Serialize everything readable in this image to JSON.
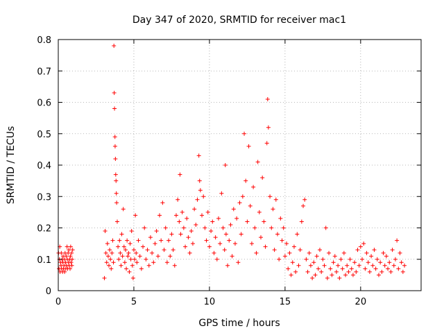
{
  "chart_data": {
    "type": "scatter",
    "title": "Day 347 of 2020, SRMTID for receiver mac1",
    "xlabel": "GPS time / hours",
    "ylabel": "SRMTID / TECUs",
    "xlim": [
      0,
      24
    ],
    "ylim": [
      0,
      0.8
    ],
    "x_ticks": [
      {
        "value": 0,
        "label": "0"
      },
      {
        "value": 5,
        "label": "5"
      },
      {
        "value": 10,
        "label": "10"
      },
      {
        "value": 15,
        "label": "15"
      },
      {
        "value": 20,
        "label": "20"
      }
    ],
    "y_ticks": [
      {
        "value": 0,
        "label": "0"
      },
      {
        "value": 0.1,
        "label": "0.1"
      },
      {
        "value": 0.2,
        "label": "0.2"
      },
      {
        "value": 0.3,
        "label": "0.3"
      },
      {
        "value": 0.4,
        "label": "0.4"
      },
      {
        "value": 0.5,
        "label": "0.5"
      },
      {
        "value": 0.6,
        "label": "0.6"
      },
      {
        "value": 0.7,
        "label": "0.7"
      },
      {
        "value": 0.8,
        "label": "0.8"
      }
    ],
    "grid": true,
    "marker": "+",
    "color": "#ff0000",
    "series": [
      {
        "name": "SRMTID",
        "points": [
          [
            0.02,
            0.12
          ],
          [
            0.05,
            0.07
          ],
          [
            0.08,
            0.1
          ],
          [
            0.1,
            0.14
          ],
          [
            0.12,
            0.06
          ],
          [
            0.15,
            0.09
          ],
          [
            0.18,
            0.08
          ],
          [
            0.2,
            0.12
          ],
          [
            0.22,
            0.07
          ],
          [
            0.25,
            0.1
          ],
          [
            0.28,
            0.06
          ],
          [
            0.3,
            0.09
          ],
          [
            0.32,
            0.11
          ],
          [
            0.35,
            0.07
          ],
          [
            0.38,
            0.08
          ],
          [
            0.4,
            0.1
          ],
          [
            0.42,
            0.06
          ],
          [
            0.45,
            0.12
          ],
          [
            0.48,
            0.09
          ],
          [
            0.5,
            0.07
          ],
          [
            0.52,
            0.11
          ],
          [
            0.55,
            0.08
          ],
          [
            0.58,
            0.14
          ],
          [
            0.6,
            0.1
          ],
          [
            0.62,
            0.07
          ],
          [
            0.65,
            0.12
          ],
          [
            0.68,
            0.09
          ],
          [
            0.7,
            0.13
          ],
          [
            0.72,
            0.08
          ],
          [
            0.75,
            0.1
          ],
          [
            0.78,
            0.07
          ],
          [
            0.8,
            0.11
          ],
          [
            0.82,
            0.14
          ],
          [
            0.85,
            0.09
          ],
          [
            0.88,
            0.12
          ],
          [
            0.9,
            0.08
          ],
          [
            0.92,
            0.1
          ],
          [
            0.95,
            0.13
          ],
          [
            3.05,
            0.04
          ],
          [
            3.1,
            0.19
          ],
          [
            3.15,
            0.12
          ],
          [
            3.2,
            0.09
          ],
          [
            3.25,
            0.15
          ],
          [
            3.3,
            0.11
          ],
          [
            3.35,
            0.08
          ],
          [
            3.4,
            0.13
          ],
          [
            3.45,
            0.1
          ],
          [
            3.5,
            0.07
          ],
          [
            3.55,
            0.12
          ],
          [
            3.6,
            0.16
          ],
          [
            3.65,
            0.09
          ],
          [
            3.68,
            0.78
          ],
          [
            3.7,
            0.63
          ],
          [
            3.72,
            0.58
          ],
          [
            3.75,
            0.49
          ],
          [
            3.76,
            0.46
          ],
          [
            3.78,
            0.42
          ],
          [
            3.8,
            0.37
          ],
          [
            3.82,
            0.35
          ],
          [
            3.84,
            0.31
          ],
          [
            3.86,
            0.28
          ],
          [
            3.9,
            0.22
          ],
          [
            3.95,
            0.14
          ],
          [
            4.0,
            0.1
          ],
          [
            4.05,
            0.16
          ],
          [
            4.1,
            0.12
          ],
          [
            4.15,
            0.08
          ],
          [
            4.2,
            0.18
          ],
          [
            4.25,
            0.11
          ],
          [
            4.3,
            0.26
          ],
          [
            4.35,
            0.14
          ],
          [
            4.4,
            0.09
          ],
          [
            4.45,
            0.13
          ],
          [
            4.5,
            0.07
          ],
          [
            4.55,
            0.16
          ],
          [
            4.6,
            0.11
          ],
          [
            4.65,
            0.12
          ],
          [
            4.7,
            0.06
          ],
          [
            4.75,
            0.15
          ],
          [
            4.8,
            0.1
          ],
          [
            4.85,
            0.19
          ],
          [
            4.9,
            0.08
          ],
          [
            4.95,
            0.04
          ],
          [
            5.0,
            0.13
          ],
          [
            5.05,
            0.1
          ],
          [
            5.1,
            0.24
          ],
          [
            5.15,
            0.12
          ],
          [
            5.2,
            0.09
          ],
          [
            5.3,
            0.16
          ],
          [
            5.4,
            0.11
          ],
          [
            5.5,
            0.07
          ],
          [
            5.6,
            0.14
          ],
          [
            5.7,
            0.2
          ],
          [
            5.8,
            0.1
          ],
          [
            5.9,
            0.13
          ],
          [
            6.0,
            0.08
          ],
          [
            6.1,
            0.17
          ],
          [
            6.2,
            0.12
          ],
          [
            6.3,
            0.09
          ],
          [
            6.4,
            0.15
          ],
          [
            6.5,
            0.19
          ],
          [
            6.6,
            0.11
          ],
          [
            6.7,
            0.24
          ],
          [
            6.8,
            0.16
          ],
          [
            6.9,
            0.28
          ],
          [
            7.0,
            0.13
          ],
          [
            7.1,
            0.2
          ],
          [
            7.2,
            0.09
          ],
          [
            7.3,
            0.16
          ],
          [
            7.4,
            0.11
          ],
          [
            7.5,
            0.18
          ],
          [
            7.6,
            0.13
          ],
          [
            7.7,
            0.08
          ],
          [
            7.8,
            0.24
          ],
          [
            7.9,
            0.29
          ],
          [
            8.0,
            0.22
          ],
          [
            8.05,
            0.37
          ],
          [
            8.1,
            0.18
          ],
          [
            8.2,
            0.25
          ],
          [
            8.3,
            0.2
          ],
          [
            8.4,
            0.14
          ],
          [
            8.5,
            0.23
          ],
          [
            8.6,
            0.17
          ],
          [
            8.7,
            0.12
          ],
          [
            8.8,
            0.19
          ],
          [
            8.9,
            0.15
          ],
          [
            9.0,
            0.26
          ],
          [
            9.1,
            0.21
          ],
          [
            9.2,
            0.29
          ],
          [
            9.3,
            0.43
          ],
          [
            9.35,
            0.35
          ],
          [
            9.4,
            0.32
          ],
          [
            9.5,
            0.24
          ],
          [
            9.6,
            0.3
          ],
          [
            9.7,
            0.2
          ],
          [
            9.8,
            0.16
          ],
          [
            9.9,
            0.25
          ],
          [
            10.0,
            0.14
          ],
          [
            10.1,
            0.19
          ],
          [
            10.2,
            0.22
          ],
          [
            10.3,
            0.12
          ],
          [
            10.4,
            0.17
          ],
          [
            10.5,
            0.1
          ],
          [
            10.6,
            0.23
          ],
          [
            10.7,
            0.15
          ],
          [
            10.8,
            0.31
          ],
          [
            10.9,
            0.2
          ],
          [
            11.0,
            0.13
          ],
          [
            11.05,
            0.4
          ],
          [
            11.1,
            0.18
          ],
          [
            11.2,
            0.08
          ],
          [
            11.3,
            0.16
          ],
          [
            11.4,
            0.21
          ],
          [
            11.5,
            0.11
          ],
          [
            11.6,
            0.26
          ],
          [
            11.7,
            0.15
          ],
          [
            11.8,
            0.23
          ],
          [
            11.9,
            0.09
          ],
          [
            12.0,
            0.28
          ],
          [
            12.1,
            0.18
          ],
          [
            12.2,
            0.3
          ],
          [
            12.3,
            0.5
          ],
          [
            12.4,
            0.35
          ],
          [
            12.5,
            0.22
          ],
          [
            12.6,
            0.46
          ],
          [
            12.7,
            0.27
          ],
          [
            12.8,
            0.15
          ],
          [
            12.9,
            0.33
          ],
          [
            13.0,
            0.2
          ],
          [
            13.1,
            0.12
          ],
          [
            13.2,
            0.41
          ],
          [
            13.3,
            0.25
          ],
          [
            13.4,
            0.17
          ],
          [
            13.5,
            0.36
          ],
          [
            13.6,
            0.22
          ],
          [
            13.7,
            0.14
          ],
          [
            13.8,
            0.47
          ],
          [
            13.85,
            0.61
          ],
          [
            13.9,
            0.52
          ],
          [
            14.0,
            0.3
          ],
          [
            14.1,
            0.2
          ],
          [
            14.2,
            0.26
          ],
          [
            14.3,
            0.13
          ],
          [
            14.4,
            0.29
          ],
          [
            14.5,
            0.18
          ],
          [
            14.6,
            0.1
          ],
          [
            14.7,
            0.23
          ],
          [
            14.8,
            0.16
          ],
          [
            14.9,
            0.2
          ],
          [
            15.0,
            0.11
          ],
          [
            15.1,
            0.15
          ],
          [
            15.2,
            0.07
          ],
          [
            15.3,
            0.12
          ],
          [
            15.4,
            0.05
          ],
          [
            15.5,
            0.09
          ],
          [
            15.6,
            0.14
          ],
          [
            15.7,
            0.06
          ],
          [
            15.8,
            0.18
          ],
          [
            15.9,
            0.08
          ],
          [
            16.0,
            0.13
          ],
          [
            16.1,
            0.22
          ],
          [
            16.2,
            0.27
          ],
          [
            16.3,
            0.29
          ],
          [
            16.4,
            0.1
          ],
          [
            16.5,
            0.06
          ],
          [
            16.6,
            0.12
          ],
          [
            16.7,
            0.08
          ],
          [
            16.8,
            0.04
          ],
          [
            16.9,
            0.09
          ],
          [
            17.0,
            0.05
          ],
          [
            17.1,
            0.11
          ],
          [
            17.2,
            0.07
          ],
          [
            17.3,
            0.13
          ],
          [
            17.4,
            0.06
          ],
          [
            17.5,
            0.1
          ],
          [
            17.6,
            0.08
          ],
          [
            17.7,
            0.2
          ],
          [
            17.8,
            0.04
          ],
          [
            17.9,
            0.12
          ],
          [
            18.0,
            0.07
          ],
          [
            18.1,
            0.05
          ],
          [
            18.2,
            0.09
          ],
          [
            18.3,
            0.11
          ],
          [
            18.4,
            0.06
          ],
          [
            18.5,
            0.08
          ],
          [
            18.6,
            0.04
          ],
          [
            18.7,
            0.1
          ],
          [
            18.8,
            0.07
          ],
          [
            18.9,
            0.12
          ],
          [
            19.0,
            0.05
          ],
          [
            19.1,
            0.08
          ],
          [
            19.2,
            0.06
          ],
          [
            19.3,
            0.1
          ],
          [
            19.4,
            0.07
          ],
          [
            19.5,
            0.05
          ],
          [
            19.6,
            0.09
          ],
          [
            19.7,
            0.06
          ],
          [
            19.8,
            0.13
          ],
          [
            19.9,
            0.08
          ],
          [
            20.0,
            0.14
          ],
          [
            20.1,
            0.1
          ],
          [
            20.2,
            0.15
          ],
          [
            20.3,
            0.07
          ],
          [
            20.4,
            0.12
          ],
          [
            20.5,
            0.09
          ],
          [
            20.6,
            0.06
          ],
          [
            20.7,
            0.11
          ],
          [
            20.8,
            0.08
          ],
          [
            20.9,
            0.13
          ],
          [
            21.0,
            0.07
          ],
          [
            21.1,
            0.1
          ],
          [
            21.2,
            0.05
          ],
          [
            21.3,
            0.09
          ],
          [
            21.4,
            0.06
          ],
          [
            21.5,
            0.12
          ],
          [
            21.6,
            0.08
          ],
          [
            21.7,
            0.11
          ],
          [
            21.8,
            0.07
          ],
          [
            21.9,
            0.09
          ],
          [
            22.0,
            0.06
          ],
          [
            22.1,
            0.13
          ],
          [
            22.2,
            0.08
          ],
          [
            22.3,
            0.1
          ],
          [
            22.4,
            0.16
          ],
          [
            22.5,
            0.07
          ],
          [
            22.6,
            0.12
          ],
          [
            22.7,
            0.09
          ],
          [
            22.8,
            0.06
          ],
          [
            22.9,
            0.08
          ]
        ]
      }
    ]
  }
}
